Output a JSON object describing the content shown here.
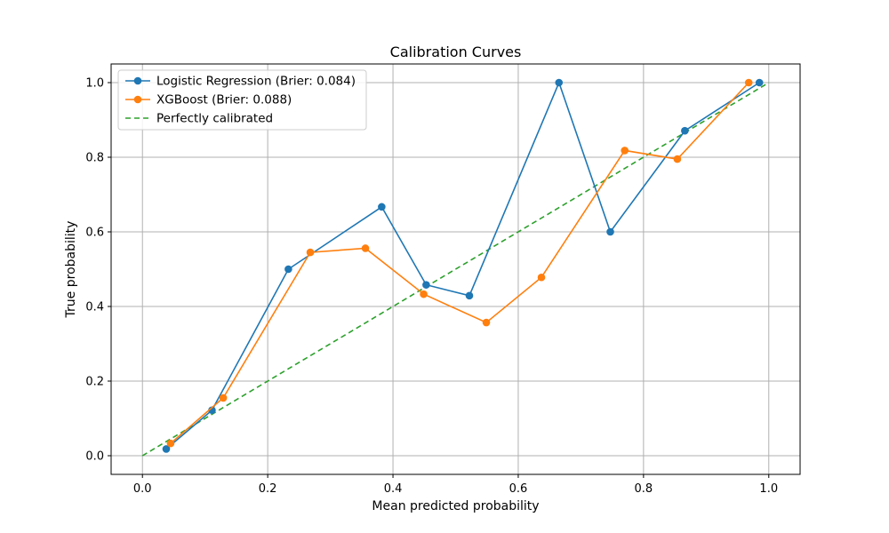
{
  "chart_data": {
    "type": "line",
    "title": "Calibration Curves",
    "xlabel": "Mean predicted probability",
    "ylabel": "True probability",
    "xlim": [
      -0.05,
      1.05
    ],
    "ylim": [
      -0.05,
      1.05
    ],
    "xticks": [
      0.0,
      0.2,
      0.4,
      0.6,
      0.8,
      1.0
    ],
    "yticks": [
      0.0,
      0.2,
      0.4,
      0.6,
      0.8,
      1.0
    ],
    "grid": true,
    "legend_position": "top-left",
    "series": [
      {
        "name": "Logistic Regression (Brier: 0.084)",
        "color": "#1f77b4",
        "style": "solid",
        "marker": "circle",
        "x": [
          0.038,
          0.111,
          0.233,
          0.382,
          0.453,
          0.522,
          0.665,
          0.747,
          0.866,
          0.985
        ],
        "y": [
          0.018,
          0.122,
          0.5,
          0.667,
          0.458,
          0.429,
          1.0,
          0.6,
          0.871,
          1.0
        ]
      },
      {
        "name": "XGBoost (Brier: 0.088)",
        "color": "#ff7f0e",
        "style": "solid",
        "marker": "circle",
        "x": [
          0.045,
          0.129,
          0.268,
          0.356,
          0.449,
          0.549,
          0.637,
          0.77,
          0.854,
          0.968
        ],
        "y": [
          0.033,
          0.155,
          0.545,
          0.556,
          0.433,
          0.357,
          0.478,
          0.818,
          0.795,
          1.0
        ]
      },
      {
        "name": "Perfectly calibrated",
        "color": "#2ca02c",
        "style": "dashed",
        "marker": "none",
        "x": [
          0,
          1
        ],
        "y": [
          0,
          1
        ]
      }
    ]
  }
}
